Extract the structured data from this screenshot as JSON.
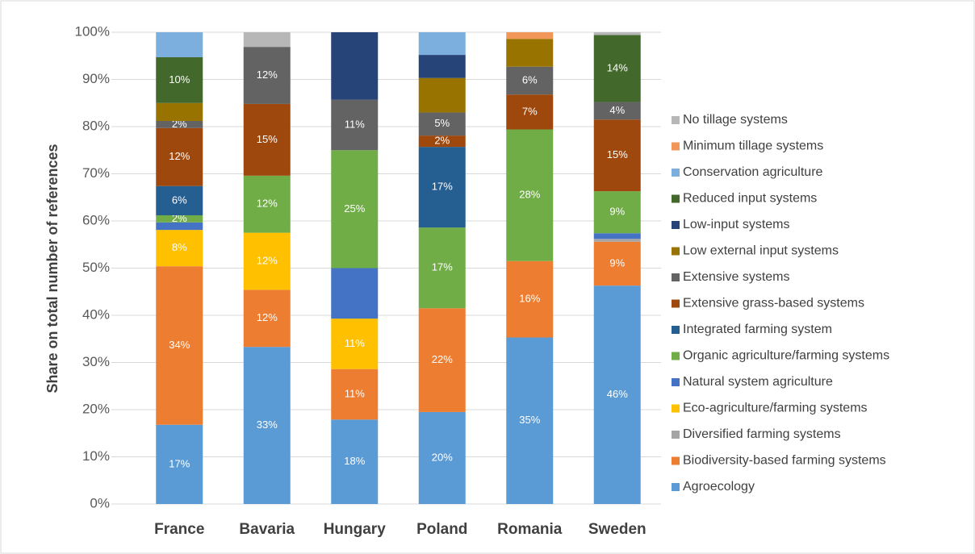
{
  "chart_data": {
    "type": "stacked_bar",
    "y_label": "Share on total number of references",
    "categories": [
      "France",
      "Bavaria",
      "Hungary",
      "Poland",
      "Romania",
      "Sweden"
    ],
    "ylim": [
      0,
      100
    ],
    "yticks": [
      {
        "value": 0,
        "label": "0%"
      },
      {
        "value": 10,
        "label": "10%"
      },
      {
        "value": 20,
        "label": "20%"
      },
      {
        "value": 30,
        "label": "30%"
      },
      {
        "value": 40,
        "label": "40%"
      },
      {
        "value": 50,
        "label": "50%"
      },
      {
        "value": 60,
        "label": "60%"
      },
      {
        "value": 70,
        "label": "70%"
      },
      {
        "value": 80,
        "label": "80%"
      },
      {
        "value": 90,
        "label": "90%"
      },
      {
        "value": 100,
        "label": "100%"
      }
    ],
    "grid": true,
    "legend": "right",
    "series": [
      {
        "name": "Agroecology",
        "color": "#5b9bd5",
        "values": [
          16.8,
          33.3,
          17.9,
          19.5,
          35.3,
          46.3
        ],
        "value_labels": [
          "17%",
          "33%",
          "18%",
          "20%",
          "35%",
          "46%"
        ]
      },
      {
        "name": "Biodiversity-based farming systems",
        "color": "#ed7d31",
        "values": [
          33.6,
          12.1,
          10.7,
          22,
          16.2,
          9.3
        ],
        "value_labels": [
          "34%",
          "12%",
          "11%",
          "22%",
          "16%",
          "9%"
        ]
      },
      {
        "name": "Diversified farming systems",
        "color": "#a5a5a5",
        "values": [
          0,
          0,
          0,
          0,
          0,
          0.6
        ],
        "value_labels": [
          null,
          null,
          null,
          null,
          null,
          null
        ]
      },
      {
        "name": "Eco-agriculture/farming systems",
        "color": "#ffc000",
        "values": [
          7.7,
          12.1,
          10.7,
          0,
          0,
          0
        ],
        "value_labels": [
          "8%",
          "12%",
          "11%",
          null,
          null,
          null
        ]
      },
      {
        "name": "Natural system agriculture",
        "color": "#4472c4",
        "values": [
          1.6,
          0,
          10.7,
          0,
          0,
          1.2
        ],
        "value_labels": [
          null,
          null,
          null,
          null,
          null,
          null
        ]
      },
      {
        "name": "Organic agriculture/farming systems",
        "color": "#70ad47",
        "values": [
          1.5,
          12.1,
          25,
          17.1,
          27.9,
          8.9
        ],
        "value_labels": [
          "2%",
          "12%",
          "25%",
          "17%",
          "28%",
          "9%"
        ]
      },
      {
        "name": "Integrated farming system",
        "color": "#255e91",
        "values": [
          6.2,
          0,
          0,
          17.1,
          0,
          0
        ],
        "value_labels": [
          "6%",
          null,
          null,
          "17%",
          null,
          null
        ]
      },
      {
        "name": "Extensive grass-based systems",
        "color": "#9e480e",
        "values": [
          12.3,
          15.2,
          0,
          2.4,
          7.4,
          15.2
        ],
        "value_labels": [
          "12%",
          "15%",
          null,
          "2%",
          "7%",
          "15%"
        ]
      },
      {
        "name": "Extensive systems",
        "color": "#636363",
        "values": [
          1.5,
          12.1,
          10.7,
          4.9,
          5.9,
          3.7
        ],
        "value_labels": [
          "2%",
          "12%",
          "11%",
          "5%",
          "6%",
          "4%"
        ]
      },
      {
        "name": "Low external input systems",
        "color": "#997300",
        "values": [
          3.8,
          0,
          0,
          7.3,
          5.9,
          0
        ],
        "value_labels": [
          null,
          null,
          null,
          null,
          null,
          null
        ]
      },
      {
        "name": "Low-input systems",
        "color": "#264478",
        "values": [
          0,
          0,
          14.3,
          4.9,
          0,
          0
        ],
        "value_labels": [
          null,
          null,
          null,
          null,
          null,
          null
        ]
      },
      {
        "name": "Reduced input systems",
        "color": "#43682b",
        "values": [
          9.7,
          0,
          0,
          0,
          0,
          14.2
        ],
        "value_labels": [
          "10%",
          null,
          null,
          null,
          null,
          "14%"
        ]
      },
      {
        "name": "Conservation agriculture",
        "color": "#7cafdd",
        "values": [
          5.3,
          0,
          0,
          4.8,
          0,
          0
        ],
        "value_labels": [
          null,
          null,
          null,
          null,
          null,
          null
        ]
      },
      {
        "name": "Minimum tillage systems",
        "color": "#f1975a",
        "values": [
          0,
          0,
          0,
          0,
          1.4,
          0
        ],
        "value_labels": [
          null,
          null,
          null,
          null,
          null,
          null
        ]
      },
      {
        "name": "No tillage systems",
        "color": "#b7b7b7",
        "values": [
          0,
          3.1,
          0,
          0,
          0,
          0.6
        ],
        "value_labels": [
          null,
          null,
          null,
          null,
          null,
          null
        ]
      }
    ]
  }
}
